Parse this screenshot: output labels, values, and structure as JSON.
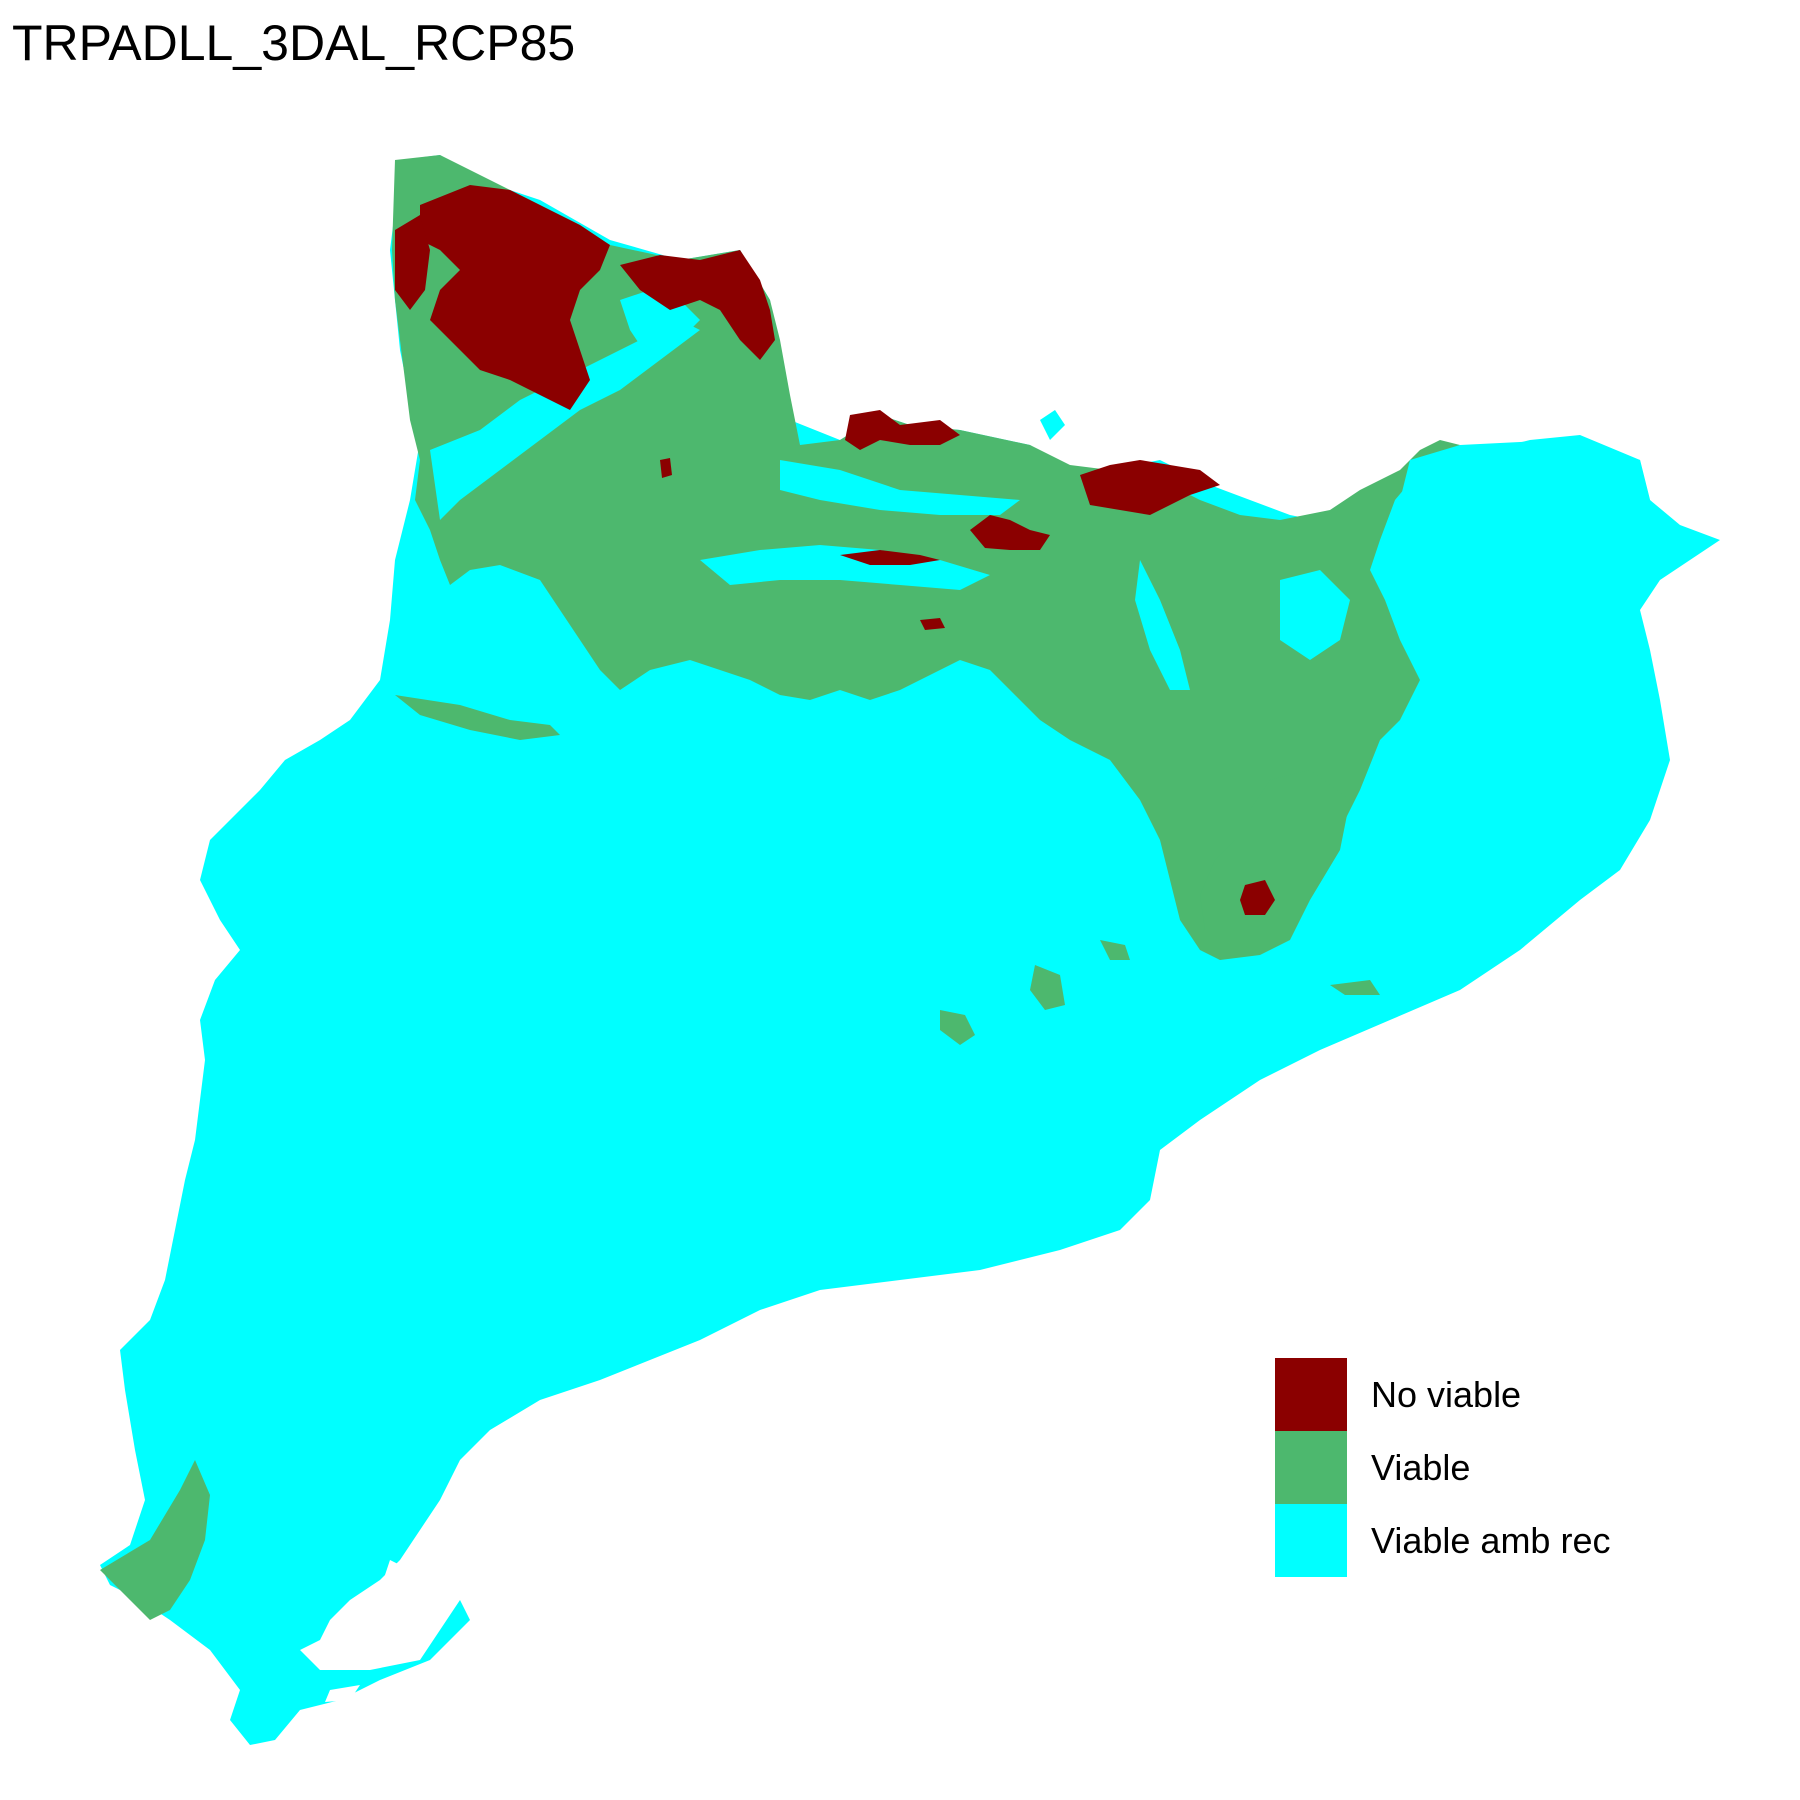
{
  "title": "TRPADLL_3DAL_RCP85",
  "legend": {
    "items": [
      {
        "label": "No viable",
        "color": "#8B0000"
      },
      {
        "label": "Viable",
        "color": "#4DB86E"
      },
      {
        "label": "Viable amb rec",
        "color": "#00FFFF"
      }
    ]
  },
  "colors": {
    "background": "#FFFFFF"
  }
}
